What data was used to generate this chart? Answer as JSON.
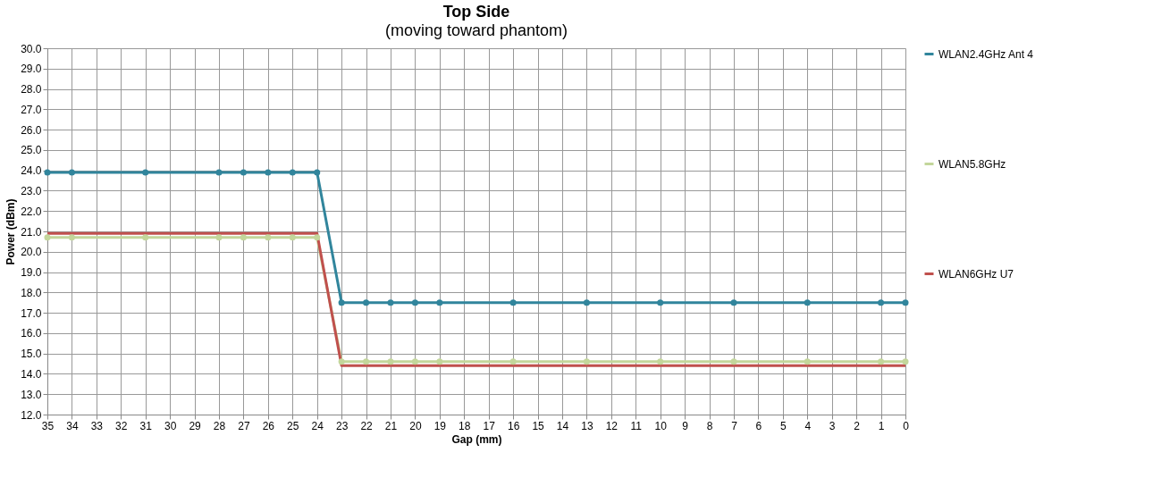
{
  "chart_data": {
    "type": "line",
    "title": "Top Side",
    "subtitle": "(moving toward phantom)",
    "xlabel": "Gap (mm)",
    "ylabel": "Power (dBm)",
    "x": [
      35,
      34,
      31,
      28,
      27,
      26,
      25,
      24,
      23,
      22,
      21,
      20,
      19,
      16,
      13,
      10,
      7,
      4,
      1,
      0
    ],
    "series": [
      {
        "name": "WLAN2.4GHz Ant 4",
        "color": "#31859c",
        "marker": "circle",
        "values": [
          23.9,
          23.9,
          23.9,
          23.9,
          23.9,
          23.9,
          23.9,
          23.9,
          17.5,
          17.5,
          17.5,
          17.5,
          17.5,
          17.5,
          17.5,
          17.5,
          17.5,
          17.5,
          17.5,
          17.5
        ]
      },
      {
        "name": "WLAN5.8GHz",
        "color": "#c3d69b",
        "marker": "circle",
        "values": [
          20.7,
          20.7,
          20.7,
          20.7,
          20.7,
          20.7,
          20.7,
          20.7,
          14.6,
          14.6,
          14.6,
          14.6,
          14.6,
          14.6,
          14.6,
          14.6,
          14.6,
          14.6,
          14.6,
          14.6
        ]
      },
      {
        "name": "WLAN6GHz U7",
        "color": "#c0504d",
        "marker": "none",
        "values": [
          20.9,
          20.9,
          20.9,
          20.9,
          20.9,
          20.9,
          20.9,
          20.9,
          14.4,
          14.4,
          14.4,
          14.4,
          14.4,
          14.4,
          14.4,
          14.4,
          14.4,
          14.4,
          14.4,
          14.4
        ]
      }
    ],
    "xlim": [
      35,
      0
    ],
    "xticks": [
      35,
      34,
      33,
      32,
      31,
      30,
      29,
      28,
      27,
      26,
      25,
      24,
      23,
      22,
      21,
      20,
      19,
      18,
      17,
      16,
      15,
      14,
      13,
      12,
      11,
      10,
      9,
      8,
      7,
      6,
      5,
      4,
      3,
      2,
      1,
      0
    ],
    "ylim": [
      12,
      30
    ],
    "yticks": [
      {
        "value": 12,
        "label": "12.0"
      },
      {
        "value": 13,
        "label": "13.0"
      },
      {
        "value": 14,
        "label": "14.0"
      },
      {
        "value": 15,
        "label": "15.0"
      },
      {
        "value": 16,
        "label": "16.0"
      },
      {
        "value": 17,
        "label": "17.0"
      },
      {
        "value": 18,
        "label": "18.0"
      },
      {
        "value": 19,
        "label": "19.0"
      },
      {
        "value": 20,
        "label": "20.0"
      },
      {
        "value": 21,
        "label": "21.0"
      },
      {
        "value": 22,
        "label": "22.0"
      },
      {
        "value": 23,
        "label": "23.0"
      },
      {
        "value": 24,
        "label": "24.0"
      },
      {
        "value": 25,
        "label": "25.0"
      },
      {
        "value": 26,
        "label": "26.0"
      },
      {
        "value": 27,
        "label": "27.0"
      },
      {
        "value": 28,
        "label": "28.0"
      },
      {
        "value": 29,
        "label": "29.0"
      },
      {
        "value": 30,
        "label": "30.0"
      }
    ],
    "grid": true,
    "legend": "right"
  }
}
